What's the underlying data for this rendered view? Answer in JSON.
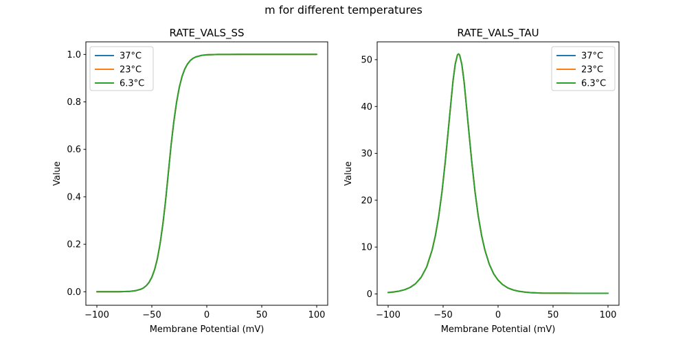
{
  "figure_title": "m for different temperatures",
  "colors": {
    "background": "#ffffff",
    "axis": "#000000",
    "legend_border": "#cccccc",
    "series": {
      "37C": "#1f77b4",
      "23C": "#ff7f0e",
      "6.3C": "#2ca02c"
    }
  },
  "note": "All three temperature curves (37°C, 23°C, 6.3°C) overlap exactly in both subplots; only the topmost green 6.3°C line is visible.",
  "chart_data": [
    {
      "type": "line",
      "title": "RATE_VALS_SS",
      "xlabel": "Membrane Potential (mV)",
      "ylabel": "Value",
      "xlim": [
        -110,
        110
      ],
      "ylim": [
        -0.057,
        1.053
      ],
      "xticks": [
        -100,
        -50,
        0,
        50,
        100
      ],
      "xtick_labels": [
        "−100",
        "−50",
        "0",
        "50",
        "100"
      ],
      "yticks": [
        0.0,
        0.2,
        0.4,
        0.6,
        0.8,
        1.0
      ],
      "ytick_labels": [
        "0.0",
        "0.2",
        "0.4",
        "0.6",
        "0.8",
        "1.0"
      ],
      "legend_position": "upper-left",
      "grid": false,
      "series": [
        {
          "name": "37°C",
          "color": "#1f77b4"
        },
        {
          "name": "23°C",
          "color": "#ff7f0e"
        },
        {
          "name": "6.3°C",
          "color": "#2ca02c"
        }
      ],
      "x": [
        -100,
        -95,
        -90,
        -85,
        -80,
        -75,
        -70,
        -65,
        -60,
        -57.5,
        -55,
        -52.5,
        -50,
        -47.5,
        -45,
        -42.5,
        -40,
        -37.5,
        -35,
        -32.5,
        -30,
        -27.5,
        -25,
        -22.5,
        -20,
        -17.5,
        -15,
        -12.5,
        -10,
        -5,
        0,
        10,
        20,
        30,
        40,
        50,
        60,
        70,
        80,
        90,
        100
      ],
      "values_shared_by_all_series": [
        0.0,
        0.0,
        0.0,
        0.0001,
        0.0003,
        0.0007,
        0.0017,
        0.0042,
        0.0105,
        0.0164,
        0.0257,
        0.0398,
        0.0611,
        0.0928,
        0.1385,
        0.2018,
        0.2835,
        0.383,
        0.5,
        0.617,
        0.7165,
        0.7982,
        0.8615,
        0.9072,
        0.9389,
        0.9602,
        0.9743,
        0.9836,
        0.9895,
        0.9957,
        0.9983,
        0.9997,
        0.9999,
        1.0,
        1.0,
        1.0,
        1.0,
        1.0,
        1.0,
        1.0,
        1.0
      ]
    },
    {
      "type": "line",
      "title": "RATE_VALS_TAU",
      "xlabel": "Membrane Potential (mV)",
      "ylabel": "Value",
      "xlim": [
        -110,
        110
      ],
      "ylim": [
        -2.42,
        53.8
      ],
      "xticks": [
        -100,
        -50,
        0,
        50,
        100
      ],
      "xtick_labels": [
        "−100",
        "−50",
        "0",
        "50",
        "100"
      ],
      "yticks": [
        0,
        10,
        20,
        30,
        40,
        50
      ],
      "ytick_labels": [
        "0",
        "10",
        "20",
        "30",
        "40",
        "50"
      ],
      "legend_position": "upper-right",
      "grid": false,
      "series": [
        {
          "name": "37°C",
          "color": "#1f77b4"
        },
        {
          "name": "23°C",
          "color": "#ff7f0e"
        },
        {
          "name": "6.3°C",
          "color": "#2ca02c"
        }
      ],
      "x": [
        -100,
        -95,
        -90,
        -85,
        -80,
        -75,
        -70,
        -65,
        -60,
        -57,
        -54,
        -51,
        -48,
        -45,
        -43,
        -41,
        -39,
        -37,
        -36,
        -35,
        -33,
        -31,
        -29,
        -27,
        -24,
        -21,
        -18,
        -15,
        -12,
        -8,
        -4,
        0,
        4,
        9,
        14,
        19,
        24,
        30,
        40,
        50,
        60,
        70,
        80,
        90,
        100
      ],
      "values_shared_by_all_series": [
        0.31,
        0.42,
        0.6,
        0.9,
        1.39,
        2.2,
        3.54,
        5.74,
        9.36,
        12.49,
        16.58,
        21.86,
        28.36,
        35.7,
        40.59,
        45.45,
        49.02,
        50.99,
        51.24,
        50.99,
        49.02,
        45.45,
        40.59,
        35.7,
        28.36,
        21.86,
        16.58,
        12.49,
        9.36,
        6.33,
        4.29,
        2.94,
        2.01,
        1.27,
        0.83,
        0.56,
        0.4,
        0.27,
        0.17,
        0.15,
        0.15,
        0.14,
        0.14,
        0.14,
        0.14
      ]
    }
  ]
}
